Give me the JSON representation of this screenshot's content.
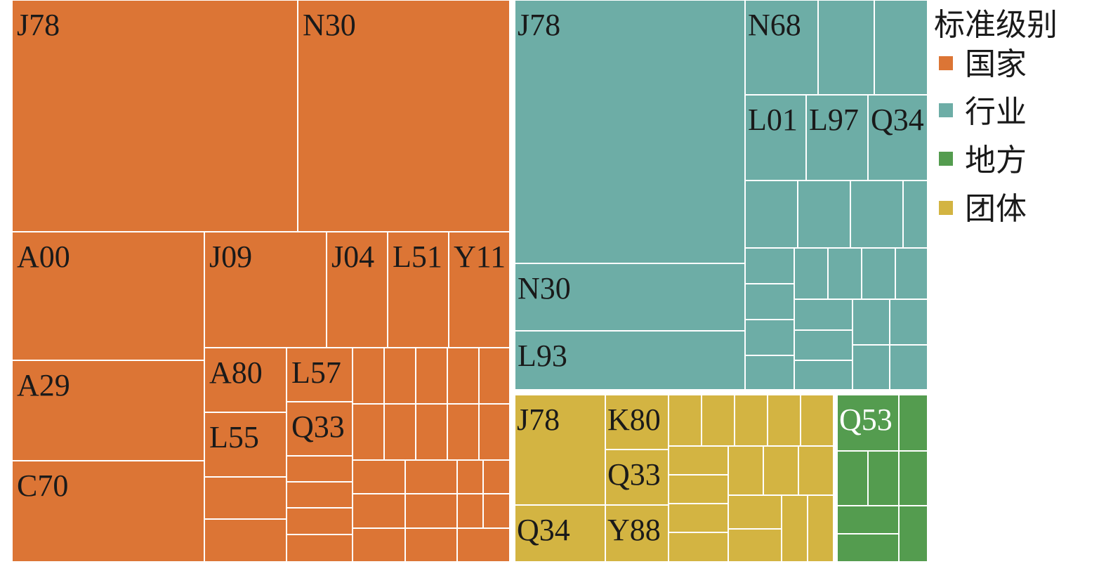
{
  "chart_data": {
    "type": "treemap",
    "colors": {
      "国家": "#DC7535",
      "行业": "#6DADA6",
      "地方": "#549C4F",
      "团体": "#D3B442",
      "border": "#ffffff"
    },
    "legend": {
      "title": "标准级别",
      "items": [
        "国家",
        "行业",
        "地方",
        "团体"
      ]
    },
    "groups": {
      "国家": {
        "labeled": [
          "J78",
          "N30",
          "A00",
          "J09",
          "J04",
          "L51",
          "Y11",
          "A29",
          "A80",
          "L57",
          "C70",
          "L55",
          "Q33"
        ],
        "unlabeled_count": 34
      },
      "行业": {
        "labeled": [
          "J78",
          "N68",
          "L01",
          "L97",
          "Q34",
          "N30",
          "L93"
        ],
        "unlabeled_count": 27
      },
      "团体": {
        "labeled": [
          "J78",
          "K80",
          "Q33",
          "Q34",
          "Y88"
        ],
        "unlabeled_count": 16
      },
      "地方": {
        "labeled": [
          "Q53"
        ],
        "unlabeled_count": 8
      }
    }
  }
}
